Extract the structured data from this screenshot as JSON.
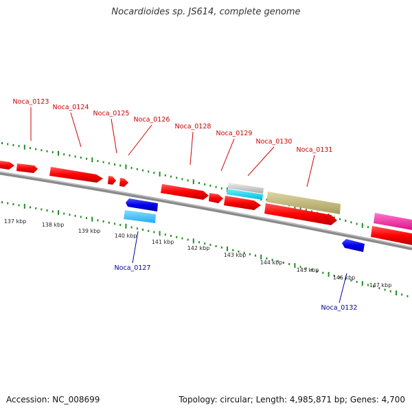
{
  "title": "Nocardioides sp. JS614, complete genome",
  "footer": {
    "accession": "Accession: NC_008699",
    "topology": "Topology: circular; Length: 4,985,871 bp; Genes: 4,700"
  },
  "colors": {
    "gene_label_top": "#cc0000",
    "gene_label_bottom": "#000099",
    "tick": "#228b22",
    "backbone": "#8a8a8a",
    "cds_red": "#ff0000",
    "cds_blue": "#0000ee",
    "cds_cyan": "#00e0ff",
    "cds_lightblue": "#33ccff",
    "cds_grey": "#cfcfcf",
    "cds_olive": "#c8c080",
    "cds_pink": "#ff33aa"
  },
  "kbp_labels": [
    "137 kbp",
    "138 kbp",
    "139 kbp",
    "140 kbp",
    "141 kbp",
    "142 kbp",
    "143 kbp",
    "144 kbp",
    "145 kbp",
    "146 kbp",
    "147 kbp"
  ],
  "gene_labels": {
    "top": [
      "Noca_0123",
      "Noca_0124",
      "Noca_0125",
      "Noca_0126",
      "Noca_0128",
      "Noca_0129",
      "Noca_0130",
      "Noca_0131"
    ],
    "bottom": [
      "Noca_0127",
      "Noca_0132"
    ]
  }
}
